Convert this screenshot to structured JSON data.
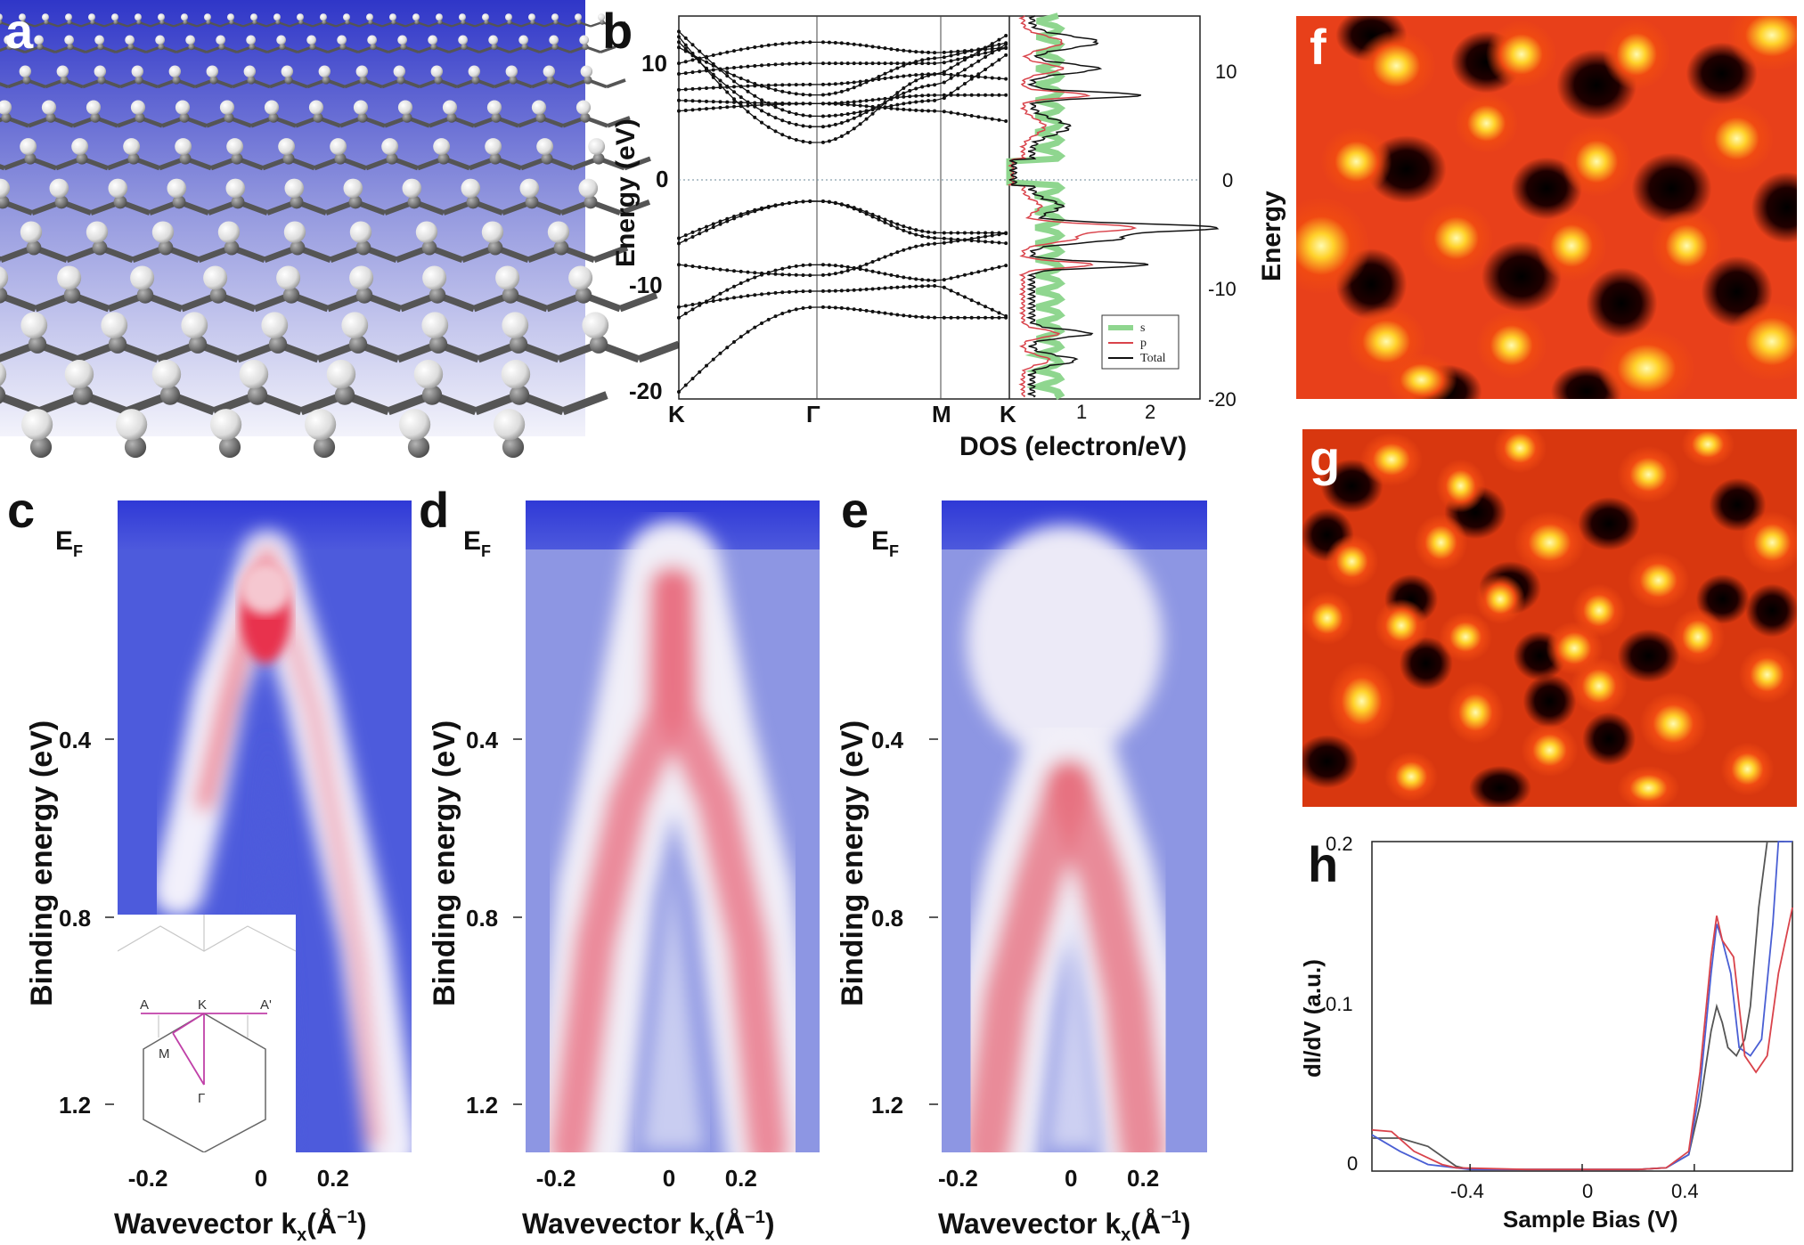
{
  "panels": {
    "a": {
      "letter": "a"
    },
    "b": {
      "letter": "b",
      "ylabel_left": "Energy (eV)",
      "ylabel_right": "Energy",
      "xlabel": "DOS (electron/eV)",
      "band_ticks_y": [
        "10",
        "0",
        "-10",
        "-20"
      ],
      "dos_ticks_y": [
        "10",
        "0",
        "-10",
        "-20"
      ],
      "kpath": [
        "K",
        "Γ",
        "M",
        "K"
      ],
      "dos_ticks_x": [
        "1",
        "2"
      ],
      "legend": [
        "s",
        "p",
        "Total"
      ],
      "colors": {
        "s": "#8fd68f",
        "p": "#d9434b",
        "total": "#111111"
      }
    },
    "c": {
      "letter": "c",
      "ef": "E",
      "ef_sub": "F",
      "ylabel": "Binding energy (eV)",
      "yticks": [
        "0.4",
        "0.8",
        "1.2"
      ],
      "xticks": [
        "-0.2",
        "0",
        "0.2"
      ],
      "xlabel": "Wavevector k",
      "xlabel_sub": "x",
      "xlabel_unit": "(Å",
      "xlabel_sup": "−1",
      "xlabel_end": ")",
      "bz": {
        "A": "A",
        "K": "K",
        "A2": "A'",
        "M": "M",
        "G": "Γ"
      }
    },
    "d": {
      "letter": "d",
      "ef": "E",
      "ef_sub": "F",
      "ylabel": "Binding energy (eV)",
      "yticks": [
        "0.4",
        "0.8",
        "1.2"
      ],
      "xticks": [
        "-0.2",
        "0",
        "0.2"
      ],
      "xlabel": "Wavevector k",
      "xlabel_sub": "x",
      "xlabel_unit": "(Å",
      "xlabel_sup": "−1",
      "xlabel_end": ")"
    },
    "e": {
      "letter": "e",
      "ef": "E",
      "ef_sub": "F",
      "ylabel": "Binding energy (eV)",
      "yticks": [
        "0.4",
        "0.8",
        "1.2"
      ],
      "xticks": [
        "-0.2",
        "0",
        "0.2"
      ],
      "xlabel": "Wavevector k",
      "xlabel_sub": "x",
      "xlabel_unit": "(Å",
      "xlabel_sup": "−1",
      "xlabel_end": ")"
    },
    "f": {
      "letter": "f"
    },
    "g": {
      "letter": "g"
    },
    "h": {
      "letter": "h",
      "ylabel": "dI/dV (a.u.)",
      "xlabel": "Sample Bias (V)",
      "yticks": [
        "0.2",
        "0.1",
        "0"
      ],
      "xticks": [
        "-0.4",
        "0",
        "0.4"
      ]
    }
  },
  "chart_data": [
    {
      "type": "line",
      "panel": "h",
      "xlabel": "Sample Bias (V)",
      "ylabel": "dI/dV (a.u.)",
      "xlim": [
        -0.75,
        0.75
      ],
      "ylim": [
        0,
        0.2
      ],
      "series": [
        {
          "color": "#555555",
          "x": [
            -0.75,
            -0.65,
            -0.55,
            -0.45,
            -0.4,
            -0.2,
            0,
            0.2,
            0.3,
            0.38,
            0.42,
            0.46,
            0.48,
            0.5,
            0.52,
            0.55,
            0.58,
            0.6,
            0.63,
            0.66,
            0.72
          ],
          "y": [
            0.02,
            0.02,
            0.015,
            0.003,
            0.001,
            0.001,
            0.001,
            0.001,
            0.002,
            0.01,
            0.04,
            0.085,
            0.1,
            0.09,
            0.075,
            0.07,
            0.08,
            0.1,
            0.16,
            0.2,
            0.2
          ]
        },
        {
          "color": "#4a5fd4",
          "x": [
            -0.75,
            -0.65,
            -0.55,
            -0.45,
            -0.4,
            -0.2,
            0,
            0.2,
            0.3,
            0.38,
            0.42,
            0.46,
            0.48,
            0.5,
            0.53,
            0.56,
            0.6,
            0.64,
            0.68,
            0.7,
            0.75
          ],
          "y": [
            0.022,
            0.012,
            0.004,
            0.002,
            0.001,
            0.001,
            0.001,
            0.001,
            0.002,
            0.01,
            0.05,
            0.12,
            0.15,
            0.14,
            0.12,
            0.075,
            0.07,
            0.08,
            0.15,
            0.2,
            0.2
          ]
        },
        {
          "color": "#d9434b",
          "x": [
            -0.75,
            -0.68,
            -0.6,
            -0.5,
            -0.45,
            -0.2,
            0,
            0.2,
            0.3,
            0.38,
            0.42,
            0.46,
            0.48,
            0.5,
            0.54,
            0.58,
            0.62,
            0.66,
            0.7,
            0.75
          ],
          "y": [
            0.025,
            0.024,
            0.012,
            0.004,
            0.002,
            0.001,
            0.001,
            0.001,
            0.002,
            0.012,
            0.06,
            0.13,
            0.155,
            0.14,
            0.13,
            0.07,
            0.06,
            0.07,
            0.12,
            0.16
          ]
        }
      ]
    }
  ]
}
